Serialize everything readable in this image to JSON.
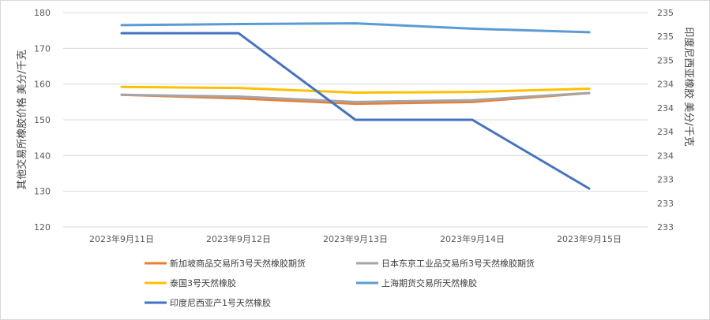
{
  "chart_data": {
    "type": "line",
    "categories": [
      "2023年9月11日",
      "2023年9月12日",
      "2023年9月13日",
      "2023年9月14日",
      "2023年9月15日"
    ],
    "left_axis": {
      "label": "其他交易所橡胶价格   美分/千克",
      "min": 120,
      "max": 180,
      "step": 10,
      "ticks": [
        "120",
        "130",
        "140",
        "150",
        "160",
        "170",
        "180"
      ]
    },
    "right_axis": {
      "label": "印度尼西亚橡胶   美分/千克",
      "min": 233,
      "max": 235.4,
      "ticks": [
        "233",
        "233",
        "233",
        "234",
        "234",
        "234",
        "234",
        "235",
        "235",
        "235"
      ]
    },
    "grid": true,
    "legend_position": "bottom",
    "series": [
      {
        "name": "新加坡商品交易所3号天然橡胶期货",
        "color": "#ED7D31",
        "axis": "left",
        "values": [
          157.0,
          156.0,
          154.5,
          155.0,
          157.5
        ]
      },
      {
        "name": "日本东京工业品交易所3号天然橡胶期货",
        "color": "#A5A5A5",
        "axis": "left",
        "values": [
          157.0,
          156.5,
          155.0,
          155.5,
          157.5
        ]
      },
      {
        "name": "泰国3号天然橡胶",
        "color": "#FFC000",
        "axis": "left",
        "values": [
          159.2,
          158.9,
          157.6,
          157.8,
          158.7
        ]
      },
      {
        "name": "上海期货交易所天然橡胶",
        "color": "#5B9BD5",
        "axis": "left",
        "values": [
          176.5,
          176.8,
          177.0,
          175.5,
          174.5
        ]
      },
      {
        "name": "印度尼西亚产1号天然橡胶",
        "color": "#4472C4",
        "axis": "right",
        "values": [
          235.17,
          235.17,
          234.2,
          234.2,
          233.43
        ]
      }
    ]
  }
}
